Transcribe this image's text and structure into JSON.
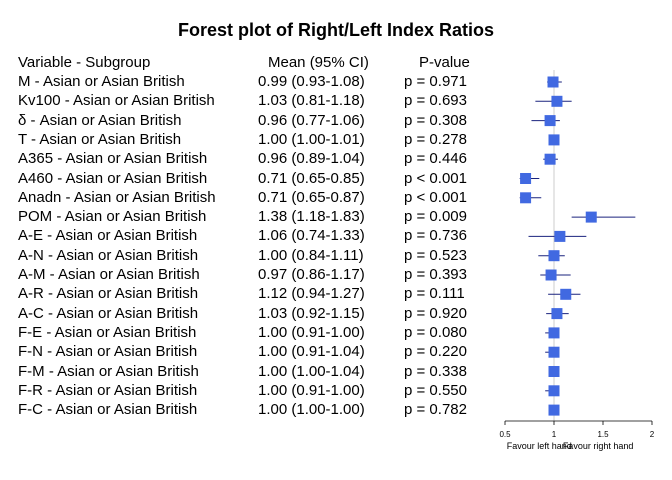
{
  "chart_data": {
    "type": "forest",
    "title": "Forest plot of Right/Left Index Ratios",
    "headers": {
      "variable": "Variable - Subgroup",
      "estimate": "Mean (95% CI)",
      "pvalue": "P-value"
    },
    "rows": [
      {
        "label": "M - Asian or Asian British",
        "ci_text": "0.99 (0.93-1.08)",
        "p_text": "p = 0.971",
        "mean": 0.99,
        "lower": 0.93,
        "upper": 1.08
      },
      {
        "label": "Kv100 - Asian or Asian British",
        "ci_text": "1.03 (0.81-1.18)",
        "p_text": "p = 0.693",
        "mean": 1.03,
        "lower": 0.81,
        "upper": 1.18
      },
      {
        "label": "δ - Asian or Asian British",
        "ci_text": "0.96 (0.77-1.06)",
        "p_text": "p = 0.308",
        "mean": 0.96,
        "lower": 0.77,
        "upper": 1.06
      },
      {
        "label": "T - Asian or Asian British",
        "ci_text": "1.00 (1.00-1.01)",
        "p_text": "p = 0.278",
        "mean": 1.0,
        "lower": 1.0,
        "upper": 1.01
      },
      {
        "label": "A365 - Asian or Asian British",
        "ci_text": "0.96 (0.89-1.04)",
        "p_text": "p = 0.446",
        "mean": 0.96,
        "lower": 0.89,
        "upper": 1.04
      },
      {
        "label": "A460 - Asian or Asian British",
        "ci_text": "0.71 (0.65-0.85)",
        "p_text": "p < 0.001",
        "mean": 0.71,
        "lower": 0.65,
        "upper": 0.85
      },
      {
        "label": "Anadn - Asian or Asian British",
        "ci_text": "0.71 (0.65-0.87)",
        "p_text": "p < 0.001",
        "mean": 0.71,
        "lower": 0.65,
        "upper": 0.87
      },
      {
        "label": "POM - Asian or Asian British",
        "ci_text": "1.38 (1.18-1.83)",
        "p_text": "p = 0.009",
        "mean": 1.38,
        "lower": 1.18,
        "upper": 1.83
      },
      {
        "label": "A-E - Asian or Asian British",
        "ci_text": "1.06 (0.74-1.33)",
        "p_text": "p = 0.736",
        "mean": 1.06,
        "lower": 0.74,
        "upper": 1.33
      },
      {
        "label": "A-N - Asian or Asian British",
        "ci_text": "1.00 (0.84-1.11)",
        "p_text": "p = 0.523",
        "mean": 1.0,
        "lower": 0.84,
        "upper": 1.11
      },
      {
        "label": "A-M - Asian or Asian British",
        "ci_text": "0.97 (0.86-1.17)",
        "p_text": "p = 0.393",
        "mean": 0.97,
        "lower": 0.86,
        "upper": 1.17
      },
      {
        "label": "A-R - Asian or Asian British",
        "ci_text": "1.12 (0.94-1.27)",
        "p_text": "p = 0.111",
        "mean": 1.12,
        "lower": 0.94,
        "upper": 1.27
      },
      {
        "label": "A-C - Asian or Asian British",
        "ci_text": "1.03 (0.92-1.15)",
        "p_text": "p = 0.920",
        "mean": 1.03,
        "lower": 0.92,
        "upper": 1.15
      },
      {
        "label": "F-E - Asian or Asian British",
        "ci_text": "1.00 (0.91-1.00)",
        "p_text": "p = 0.080",
        "mean": 1.0,
        "lower": 0.91,
        "upper": 1.0
      },
      {
        "label": "F-N - Asian or Asian British",
        "ci_text": "1.00 (0.91-1.04)",
        "p_text": "p = 0.220",
        "mean": 1.0,
        "lower": 0.91,
        "upper": 1.04
      },
      {
        "label": "F-M - Asian or Asian British",
        "ci_text": "1.00 (1.00-1.04)",
        "p_text": "p = 0.338",
        "mean": 1.0,
        "lower": 1.0,
        "upper": 1.04
      },
      {
        "label": "F-R - Asian or Asian British",
        "ci_text": "1.00 (0.91-1.00)",
        "p_text": "p = 0.550",
        "mean": 1.0,
        "lower": 0.91,
        "upper": 1.0
      },
      {
        "label": "F-C - Asian or Asian British",
        "ci_text": "1.00 (1.00-1.00)",
        "p_text": "p = 0.782",
        "mean": 1.0,
        "lower": 1.0,
        "upper": 1.0
      }
    ],
    "x_axis": {
      "ticks": [
        0.5,
        1,
        1.5,
        2
      ],
      "tick_labels": [
        "0.5",
        "1",
        "1.5",
        "2"
      ],
      "xlim": [
        0.5,
        2
      ],
      "reference_line": 1,
      "left_caption": "Favour left hand",
      "right_caption": "Favour right hand"
    },
    "colors": {
      "marker": "#4169e1",
      "ci_line": "#1a237e",
      "reference_line": "#cccccc",
      "axis": "#000000"
    }
  }
}
